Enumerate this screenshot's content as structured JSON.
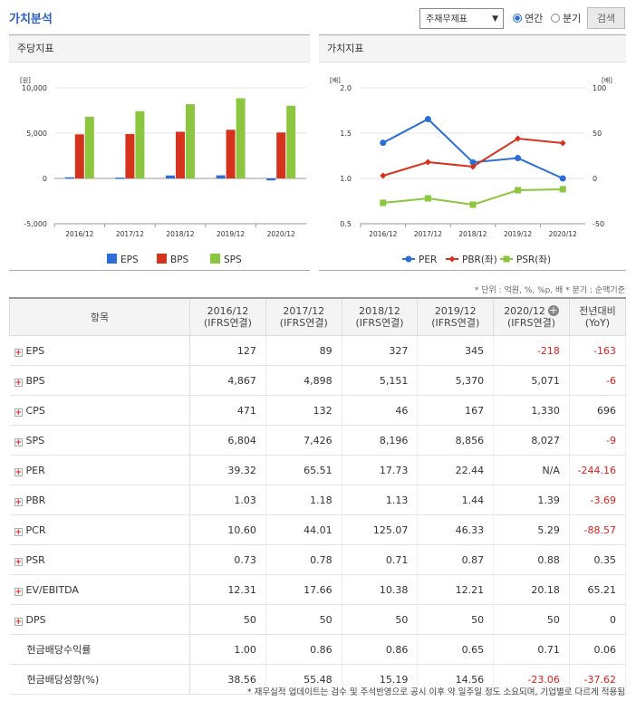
{
  "title": "가치분석",
  "controls": {
    "select_value": "주재무제표",
    "radio_annual": "연간",
    "radio_quarter": "분기",
    "search_label": "검색"
  },
  "left_chart": {
    "heading": "주당지표",
    "chart_data": {
      "type": "bar",
      "yunit": "[원]",
      "categories": [
        "2016/12",
        "2017/12",
        "2018/12",
        "2019/12",
        "2020/12"
      ],
      "ylim": [
        -5000,
        10000
      ],
      "yticks": [
        "10,000",
        "5,000",
        "0",
        "-5,000"
      ],
      "series": [
        {
          "name": "EPS",
          "color": "#2b6fd6",
          "values": [
            127,
            89,
            327,
            345,
            -218
          ]
        },
        {
          "name": "BPS",
          "color": "#d6331f",
          "values": [
            4867,
            4898,
            5151,
            5370,
            5071
          ]
        },
        {
          "name": "SPS",
          "color": "#8cc63f",
          "values": [
            6804,
            7426,
            8196,
            8856,
            8027
          ]
        }
      ]
    }
  },
  "right_chart": {
    "heading": "가치지표",
    "chart_data": {
      "type": "line",
      "yunit_left": "[배]",
      "yunit_right": "[배]",
      "categories": [
        "2016/12",
        "2017/12",
        "2018/12",
        "2019/12",
        "2020/12"
      ],
      "ylim_left": [
        0.5,
        2.0
      ],
      "yticks_left": [
        "2.0",
        "1.5",
        "1.0",
        "0.5"
      ],
      "ylim_right": [
        -50,
        100
      ],
      "yticks_right": [
        "100",
        "50",
        "0",
        "-50"
      ],
      "series": [
        {
          "name": "PER",
          "axis": "right",
          "color": "#2b6fd6",
          "marker": "circle",
          "values": [
            39.32,
            65.51,
            17.73,
            22.44,
            null
          ]
        },
        {
          "name": "PBR(좌)",
          "axis": "left",
          "color": "#d6331f",
          "marker": "diamond",
          "values": [
            1.03,
            1.18,
            1.13,
            1.44,
            1.39
          ]
        },
        {
          "name": "PSR(좌)",
          "axis": "left",
          "color": "#8cc63f",
          "marker": "square",
          "values": [
            0.73,
            0.78,
            0.71,
            0.87,
            0.88
          ]
        }
      ]
    }
  },
  "unit_note": "* 단위 : 억원, %, %p, 배    * 분기 : 순액기준",
  "table": {
    "headers": [
      {
        "l1": "항목",
        "l2": ""
      },
      {
        "l1": "2016/12",
        "l2": "(IFRS연결)"
      },
      {
        "l1": "2017/12",
        "l2": "(IFRS연결)"
      },
      {
        "l1": "2018/12",
        "l2": "(IFRS연결)"
      },
      {
        "l1": "2019/12",
        "l2": "(IFRS연결)"
      },
      {
        "l1": "2020/12",
        "l2": "(IFRS연결)"
      },
      {
        "l1": "전년대비",
        "l2": "(YoY)"
      }
    ],
    "rows": [
      {
        "label": "EPS",
        "expand": true,
        "values": [
          "127",
          "89",
          "327",
          "345",
          "-218",
          "-163"
        ]
      },
      {
        "label": "BPS",
        "expand": true,
        "values": [
          "4,867",
          "4,898",
          "5,151",
          "5,370",
          "5,071",
          "-6"
        ]
      },
      {
        "label": "CPS",
        "expand": true,
        "values": [
          "471",
          "132",
          "46",
          "167",
          "1,330",
          "696"
        ]
      },
      {
        "label": "SPS",
        "expand": true,
        "values": [
          "6,804",
          "7,426",
          "8,196",
          "8,856",
          "8,027",
          "-9"
        ]
      },
      {
        "label": "PER",
        "expand": true,
        "values": [
          "39.32",
          "65.51",
          "17.73",
          "22.44",
          "N/A",
          "-244.16"
        ]
      },
      {
        "label": "PBR",
        "expand": true,
        "values": [
          "1.03",
          "1.18",
          "1.13",
          "1.44",
          "1.39",
          "-3.69"
        ]
      },
      {
        "label": "PCR",
        "expand": true,
        "values": [
          "10.60",
          "44.01",
          "125.07",
          "46.33",
          "5.29",
          "-88.57"
        ]
      },
      {
        "label": "PSR",
        "expand": true,
        "values": [
          "0.73",
          "0.78",
          "0.71",
          "0.87",
          "0.88",
          "0.35"
        ]
      },
      {
        "label": "EV/EBITDA",
        "expand": true,
        "values": [
          "12.31",
          "17.66",
          "10.38",
          "12.21",
          "20.18",
          "65.21"
        ]
      },
      {
        "label": "DPS",
        "expand": true,
        "values": [
          "50",
          "50",
          "50",
          "50",
          "50",
          "0"
        ]
      },
      {
        "label": "현금배당수익률",
        "expand": false,
        "values": [
          "1.00",
          "0.86",
          "0.86",
          "0.65",
          "0.71",
          "0.06"
        ]
      },
      {
        "label": "현금배당성향(%)",
        "expand": false,
        "values": [
          "38.56",
          "55.48",
          "15.19",
          "14.56",
          "-23.06",
          "-37.62"
        ]
      }
    ]
  },
  "footer": "* 재무실적 업데이트는 검수 및 주석반영으로 공시 이후 약 일주일 정도 소요되며, 기업별로 다르게 적용됨",
  "colors": {
    "accent": "#2b5fb8",
    "negative": "#e0201e"
  }
}
